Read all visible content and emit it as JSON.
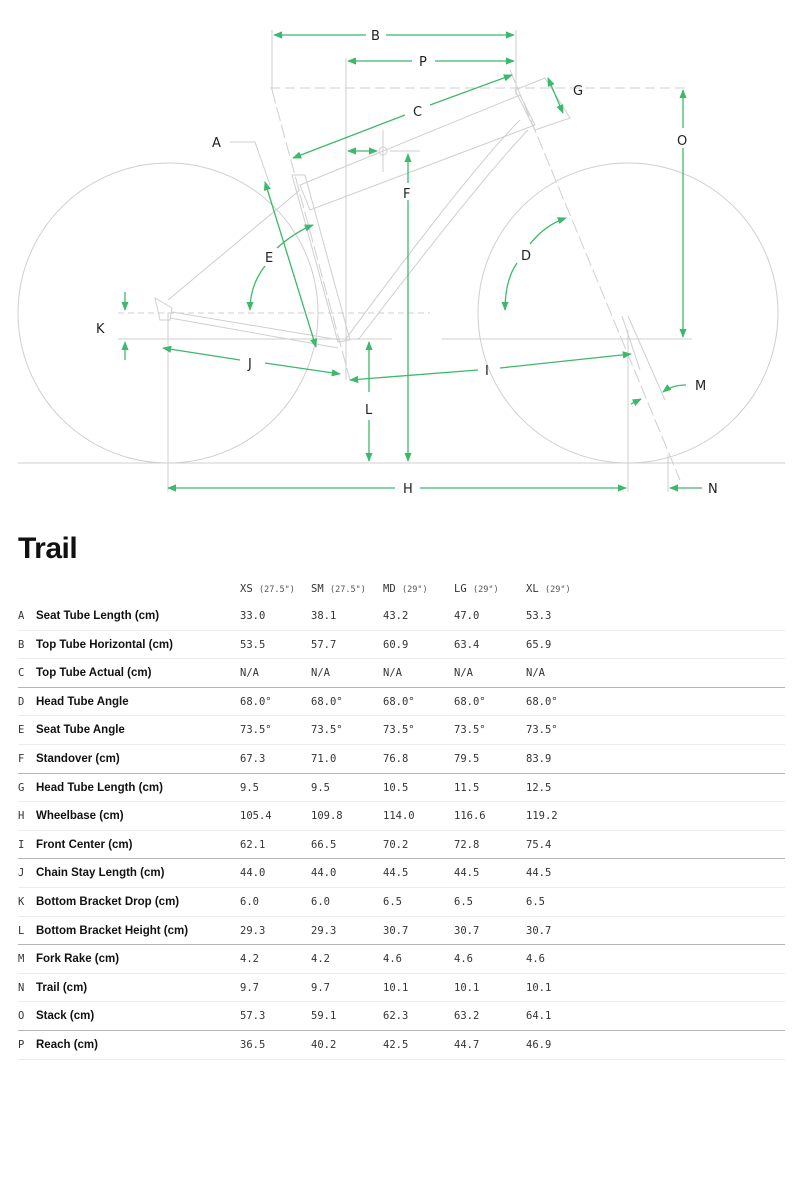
{
  "diagram": {
    "labels": {
      "A": "A",
      "B": "B",
      "C": "C",
      "D": "D",
      "E": "E",
      "F": "F",
      "G": "G",
      "H": "H",
      "I": "I",
      "J": "J",
      "K": "K",
      "L": "L",
      "M": "M",
      "N": "N",
      "O": "O",
      "P": "P"
    },
    "accent_color": "#3cb96a",
    "line_color": "#cfcfcf"
  },
  "title": "Trail",
  "table": {
    "columns": [
      {
        "size": "XS",
        "wheel": "(27.5\")"
      },
      {
        "size": "SM",
        "wheel": "(27.5\")"
      },
      {
        "size": "MD",
        "wheel": "(29\")"
      },
      {
        "size": "LG",
        "wheel": "(29\")"
      },
      {
        "size": "XL",
        "wheel": "(29\")"
      }
    ],
    "rows": [
      {
        "letter": "A",
        "label": "Seat Tube Length (cm)",
        "values": [
          "33.0",
          "38.1",
          "43.2",
          "47.0",
          "53.3"
        ]
      },
      {
        "letter": "B",
        "label": "Top Tube Horizontal (cm)",
        "values": [
          "53.5",
          "57.7",
          "60.9",
          "63.4",
          "65.9"
        ]
      },
      {
        "letter": "C",
        "label": "Top Tube Actual (cm)",
        "values": [
          "N/A",
          "N/A",
          "N/A",
          "N/A",
          "N/A"
        ]
      },
      {
        "letter": "D",
        "label": "Head Tube Angle",
        "values": [
          "68.0°",
          "68.0°",
          "68.0°",
          "68.0°",
          "68.0°"
        ]
      },
      {
        "letter": "E",
        "label": "Seat Tube Angle",
        "values": [
          "73.5°",
          "73.5°",
          "73.5°",
          "73.5°",
          "73.5°"
        ]
      },
      {
        "letter": "F",
        "label": "Standover (cm)",
        "values": [
          "67.3",
          "71.0",
          "76.8",
          "79.5",
          "83.9"
        ]
      },
      {
        "letter": "G",
        "label": "Head Tube Length (cm)",
        "values": [
          "9.5",
          "9.5",
          "10.5",
          "11.5",
          "12.5"
        ]
      },
      {
        "letter": "H",
        "label": "Wheelbase (cm)",
        "values": [
          "105.4",
          "109.8",
          "114.0",
          "116.6",
          "119.2"
        ]
      },
      {
        "letter": "I",
        "label": "Front Center (cm)",
        "values": [
          "62.1",
          "66.5",
          "70.2",
          "72.8",
          "75.4"
        ]
      },
      {
        "letter": "J",
        "label": "Chain Stay Length (cm)",
        "values": [
          "44.0",
          "44.0",
          "44.5",
          "44.5",
          "44.5"
        ]
      },
      {
        "letter": "K",
        "label": "Bottom Bracket Drop (cm)",
        "values": [
          "6.0",
          "6.0",
          "6.5",
          "6.5",
          "6.5"
        ]
      },
      {
        "letter": "L",
        "label": "Bottom Bracket Height (cm)",
        "values": [
          "29.3",
          "29.3",
          "30.7",
          "30.7",
          "30.7"
        ]
      },
      {
        "letter": "M",
        "label": "Fork Rake (cm)",
        "values": [
          "4.2",
          "4.2",
          "4.6",
          "4.6",
          "4.6"
        ]
      },
      {
        "letter": "N",
        "label": "Trail (cm)",
        "values": [
          "9.7",
          "9.7",
          "10.1",
          "10.1",
          "10.1"
        ]
      },
      {
        "letter": "O",
        "label": "Stack (cm)",
        "values": [
          "57.3",
          "59.1",
          "62.3",
          "63.2",
          "64.1"
        ]
      },
      {
        "letter": "P",
        "label": "Reach (cm)",
        "values": [
          "36.5",
          "40.2",
          "42.5",
          "44.7",
          "46.9"
        ]
      }
    ]
  }
}
